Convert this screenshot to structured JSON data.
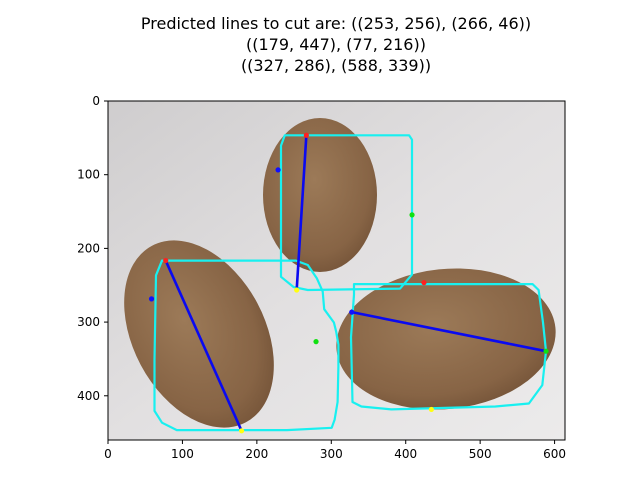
{
  "title_lines": [
    "Predicted lines to cut are: ((253, 256), (266, 46))",
    "((179, 447), (77, 216))",
    "((327, 286), (588, 339))"
  ],
  "image": {
    "width": 614,
    "height": 460,
    "background": "#dcdadb",
    "subject": "three brown potatoes on a white surface"
  },
  "colors": {
    "contour": "#18f0f0",
    "cut_line": "#0a0af0",
    "potato": "#8c6a4c",
    "marker_left": "#1010ff",
    "marker_right": "#10e010",
    "marker_top": "#ff2020",
    "marker_bottom": "#ffff10"
  },
  "axes": {
    "x_ticks": [
      0,
      100,
      200,
      300,
      400,
      500,
      600
    ],
    "y_ticks": [
      0,
      100,
      200,
      300,
      400
    ]
  },
  "cuts": [
    {
      "from": [
        253,
        256
      ],
      "to": [
        266,
        46
      ]
    },
    {
      "from": [
        179,
        447
      ],
      "to": [
        77,
        216
      ]
    },
    {
      "from": [
        327,
        286
      ],
      "to": [
        588,
        339
      ]
    }
  ],
  "contours": [
    [
      [
        237,
        46
      ],
      [
        404,
        46
      ],
      [
        408,
        52
      ],
      [
        408,
        235
      ],
      [
        392,
        254
      ],
      [
        268,
        256
      ],
      [
        249,
        252
      ],
      [
        232,
        238
      ],
      [
        232,
        60
      ]
    ],
    [
      [
        72,
        216
      ],
      [
        252,
        216
      ],
      [
        268,
        222
      ],
      [
        280,
        240
      ],
      [
        288,
        258
      ],
      [
        290,
        282
      ],
      [
        303,
        300
      ],
      [
        306,
        312
      ],
      [
        309,
        330
      ],
      [
        309,
        360
      ],
      [
        308,
        408
      ],
      [
        304,
        432
      ],
      [
        300,
        443
      ],
      [
        240,
        446
      ],
      [
        92,
        446
      ],
      [
        72,
        436
      ],
      [
        62,
        420
      ],
      [
        62,
        350
      ],
      [
        64,
        236
      ]
    ],
    [
      [
        330,
        248
      ],
      [
        570,
        248
      ],
      [
        578,
        256
      ],
      [
        584,
        300
      ],
      [
        588,
        339
      ],
      [
        583,
        385
      ],
      [
        565,
        410
      ],
      [
        520,
        414
      ],
      [
        380,
        418
      ],
      [
        340,
        414
      ],
      [
        328,
        408
      ],
      [
        326,
        320
      ],
      [
        330,
        262
      ]
    ]
  ],
  "extreme_points": [
    {
      "x": 228,
      "y": 93,
      "kind": "left"
    },
    {
      "x": 408,
      "y": 154,
      "kind": "right"
    },
    {
      "x": 266,
      "y": 46,
      "kind": "top"
    },
    {
      "x": 253,
      "y": 256,
      "kind": "bottom"
    },
    {
      "x": 58,
      "y": 268,
      "kind": "left"
    },
    {
      "x": 279,
      "y": 326,
      "kind": "right"
    },
    {
      "x": 77,
      "y": 216,
      "kind": "top"
    },
    {
      "x": 179,
      "y": 447,
      "kind": "bottom"
    },
    {
      "x": 327,
      "y": 286,
      "kind": "left"
    },
    {
      "x": 588,
      "y": 339,
      "kind": "right"
    },
    {
      "x": 424,
      "y": 246,
      "kind": "top"
    },
    {
      "x": 434,
      "y": 418,
      "kind": "bottom"
    }
  ]
}
